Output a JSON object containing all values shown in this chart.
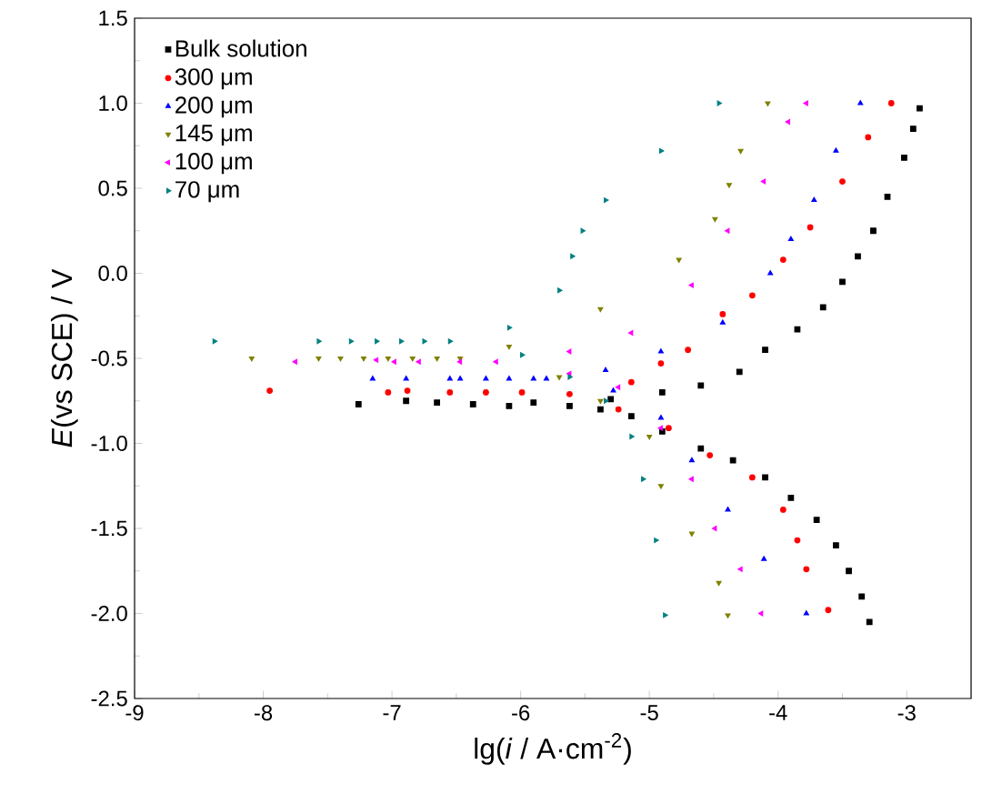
{
  "chart_data": {
    "type": "scatter",
    "xlabel": "lg(*i* / A·cm$^{-2}$)",
    "ylabel": "*E*(vs SCE) / V",
    "xlim": [
      -9,
      -2.5
    ],
    "ylim": [
      -2.5,
      1.5
    ],
    "xticks": [
      -9,
      -8,
      -7,
      -6,
      -5,
      -4,
      -3
    ],
    "yticks": [
      -2.5,
      {
        "value": -2,
        "label": "-2.0"
      },
      -1.5,
      {
        "value": -1,
        "label": "-1.0"
      },
      -0.5,
      {
        "value": 0,
        "label": "0.0"
      },
      0.5,
      {
        "value": 1,
        "label": "1.0"
      },
      1.5
    ],
    "legend": "top left",
    "grid": false,
    "series": [
      {
        "name": "Bulk solution",
        "color": "#000000",
        "marker": "square",
        "x": [
          -3.29,
          -3.35,
          -3.45,
          -3.55,
          -3.7,
          -3.9,
          -4.1,
          -4.35,
          -4.6,
          -4.9,
          -5.14,
          -5.38,
          -5.62,
          -6.09,
          -6.37,
          -6.65,
          -6.89,
          -7.26,
          -5.9,
          -5.3,
          -4.9,
          -4.6,
          -4.3,
          -4.1,
          -3.85,
          -3.65,
          -3.5,
          -3.38,
          -3.26,
          -3.15,
          -3.02,
          -2.95,
          -2.9
        ],
        "values": [
          -2.05,
          -1.9,
          -1.75,
          -1.6,
          -1.45,
          -1.32,
          -1.2,
          -1.1,
          -1.03,
          -0.93,
          -0.84,
          -0.8,
          -0.78,
          -0.78,
          -0.77,
          -0.76,
          -0.75,
          -0.77,
          -0.76,
          -0.74,
          -0.7,
          -0.66,
          -0.58,
          -0.45,
          -0.33,
          -0.2,
          -0.05,
          0.1,
          0.25,
          0.45,
          0.68,
          0.85,
          0.97
        ]
      },
      {
        "name": "300 μm",
        "color": "#ff0000",
        "marker": "circle",
        "x": [
          -3.61,
          -3.78,
          -3.85,
          -3.96,
          -4.2,
          -4.53,
          -4.85,
          -5.24,
          -5.62,
          -5.99,
          -6.27,
          -6.55,
          -6.88,
          -7.03,
          -7.95,
          -5.14,
          -4.91,
          -4.7,
          -4.43,
          -4.2,
          -3.96,
          -3.75,
          -3.5,
          -3.3,
          -3.12
        ],
        "values": [
          -1.98,
          -1.74,
          -1.57,
          -1.39,
          -1.2,
          -1.07,
          -0.91,
          -0.8,
          -0.71,
          -0.7,
          -0.7,
          -0.7,
          -0.69,
          -0.7,
          -0.69,
          -0.64,
          -0.53,
          -0.45,
          -0.24,
          -0.13,
          0.08,
          0.27,
          0.54,
          0.8,
          1.0
        ]
      },
      {
        "name": "200 μm",
        "color": "#0000ff",
        "marker": "triangle",
        "x": [
          -3.78,
          -4.11,
          -4.39,
          -4.67,
          -4.91,
          -5.28,
          -5.8,
          -5.9,
          -6.09,
          -6.27,
          -6.47,
          -6.55,
          -6.89,
          -7.15,
          -5.34,
          -4.91,
          -4.43,
          -4.06,
          -3.9,
          -3.72,
          -3.55,
          -3.36
        ],
        "values": [
          -2.0,
          -1.68,
          -1.39,
          -1.1,
          -0.85,
          -0.69,
          -0.62,
          -0.62,
          -0.62,
          -0.62,
          -0.62,
          -0.62,
          -0.62,
          -0.62,
          -0.57,
          -0.46,
          -0.29,
          0.0,
          0.2,
          0.43,
          0.72,
          1.0
        ]
      },
      {
        "name": "145 μm",
        "color": "#808000",
        "marker": "triangle-down",
        "x": [
          -4.39,
          -4.46,
          -4.67,
          -4.91,
          -5.0,
          -5.38,
          -5.7,
          -6.47,
          -6.65,
          -6.84,
          -7.03,
          -7.22,
          -7.4,
          -7.57,
          -8.09,
          -6.09,
          -5.38,
          -4.77,
          -4.49,
          -4.38,
          -4.29,
          -4.08
        ],
        "values": [
          -2.01,
          -1.82,
          -1.53,
          -1.25,
          -0.96,
          -0.75,
          -0.61,
          -0.5,
          -0.5,
          -0.5,
          -0.5,
          -0.5,
          -0.5,
          -0.5,
          -0.5,
          -0.43,
          -0.21,
          0.08,
          0.32,
          0.52,
          0.72,
          1.0
        ]
      },
      {
        "name": "100 μm",
        "color": "#ff00ff",
        "marker": "triangle-left",
        "x": [
          -4.13,
          -4.29,
          -4.49,
          -4.67,
          -4.91,
          -5.24,
          -5.62,
          -6.19,
          -6.47,
          -6.79,
          -6.98,
          -7.12,
          -7.75,
          -5.62,
          -5.14,
          -4.67,
          -4.39,
          -4.11,
          -3.92,
          -3.78
        ],
        "values": [
          -2.0,
          -1.74,
          -1.5,
          -1.21,
          -0.91,
          -0.67,
          -0.59,
          -0.52,
          -0.52,
          -0.52,
          -0.52,
          -0.51,
          -0.52,
          -0.46,
          -0.35,
          -0.07,
          0.25,
          0.54,
          0.89,
          1.0
        ]
      },
      {
        "name": "70 μm",
        "color": "#008080",
        "marker": "triangle-right",
        "x": [
          -4.88,
          -4.95,
          -5.05,
          -5.14,
          -5.34,
          -5.62,
          -5.99,
          -6.55,
          -6.75,
          -6.93,
          -7.12,
          -7.32,
          -7.57,
          -8.38,
          -6.09,
          -5.7,
          -5.6,
          -5.52,
          -5.34,
          -4.91,
          -4.46
        ],
        "values": [
          -2.01,
          -1.57,
          -1.21,
          -0.96,
          -0.75,
          -0.61,
          -0.48,
          -0.4,
          -0.4,
          -0.4,
          -0.4,
          -0.4,
          -0.4,
          -0.4,
          -0.32,
          -0.1,
          0.1,
          0.25,
          0.43,
          0.72,
          1.0
        ]
      }
    ]
  }
}
